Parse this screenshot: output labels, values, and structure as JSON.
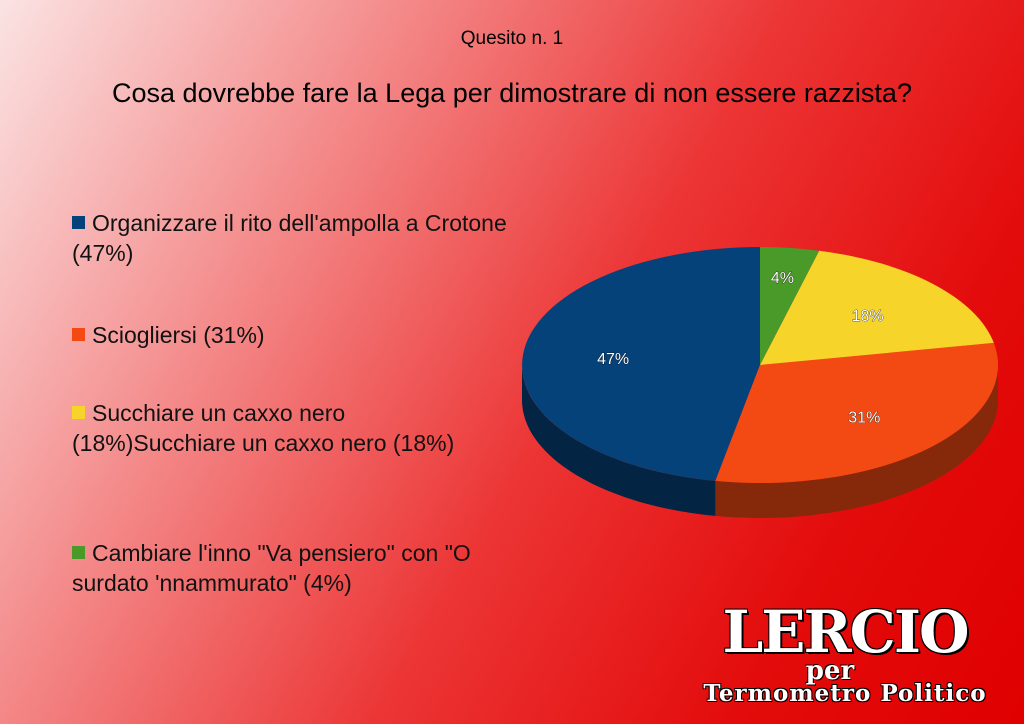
{
  "header": {
    "subtitle": "Quesito n. 1",
    "question": "Cosa dovrebbe fare la Lega per dimostrare di non essere razzista?"
  },
  "legend": {
    "items": [
      {
        "text": "Organizzare il rito dell'ampolla a Crotone (47%)",
        "color": "#06427a"
      },
      {
        "text": "Sciogliersi (31%)",
        "color": "#f24a12"
      },
      {
        "text": "Succhiare un caxxo nero (18%)Succhiare un caxxo nero (18%)",
        "color": "#f7d42a"
      },
      {
        "text": "Cambiare l'inno \"Va pensiero\" con \"O surdato 'nnammurato\" (4%)",
        "color": "#4a9a2a"
      }
    ]
  },
  "chart_data": {
    "type": "pie",
    "title": "Cosa dovrebbe fare la Lega per dimostrare di non essere razzista?",
    "categories": [
      "Organizzare il rito dell'ampolla a Crotone",
      "Sciogliersi",
      "Succhiare un caxxo nero",
      "Cambiare l'inno \"Va pensiero\" con \"O surdato 'nnammurato\""
    ],
    "values": [
      47,
      31,
      18,
      4
    ],
    "labels": [
      "47%",
      "31%",
      "18%",
      "4%"
    ],
    "colors": [
      "#06427a",
      "#f24a12",
      "#f7d42a",
      "#4a9a2a"
    ],
    "style": "3d",
    "legend_position": "left"
  },
  "logo": {
    "main": "LERCIO",
    "per": "per",
    "sub": "Termometro Politico"
  }
}
